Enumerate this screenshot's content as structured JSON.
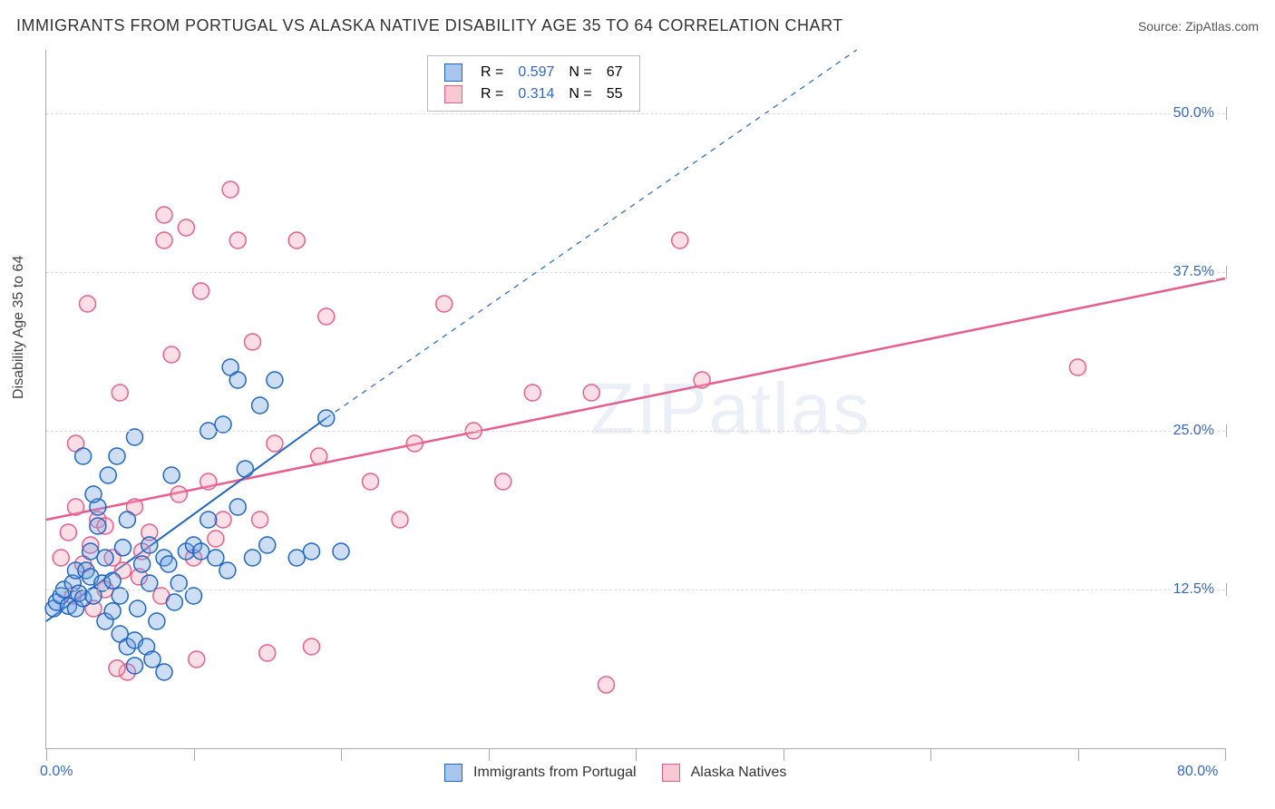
{
  "title": "IMMIGRANTS FROM PORTUGAL VS ALASKA NATIVE DISABILITY AGE 35 TO 64 CORRELATION CHART",
  "source_label": "Source:",
  "source_value": "ZipAtlas.com",
  "y_axis_title": "Disability Age 35 to 64",
  "watermark": "ZIPatlas",
  "chart": {
    "type": "scatter",
    "xlim": [
      0,
      80
    ],
    "ylim": [
      0,
      55
    ],
    "x_label_min": "0.0%",
    "x_label_max": "80.0%",
    "y_grid_values": [
      12.5,
      25.0,
      37.5,
      50.0
    ],
    "y_grid_labels": [
      "12.5%",
      "25.0%",
      "37.5%",
      "50.0%"
    ],
    "x_tick_values": [
      0,
      10,
      20,
      30,
      40,
      50,
      60,
      70,
      80
    ],
    "background_color": "#ffffff",
    "grid_color": "#dddddd",
    "axis_color": "#aaaaaa",
    "label_color": "#3366cc",
    "label_fontsize": 16,
    "title_fontsize": 18,
    "title_color": "#333333",
    "marker_radius": 9,
    "marker_stroke_width": 1.5,
    "marker_fill_opacity": 0.35,
    "series": [
      {
        "name": "Immigrants from Portugal",
        "color_fill": "#6fa0e0",
        "color_stroke": "#1f66c4",
        "R": 0.597,
        "N": 67,
        "regression": {
          "solid": {
            "x1": 0,
            "y1": 10,
            "x2": 19,
            "y2": 26
          },
          "dashed": {
            "x1": 19,
            "y1": 26,
            "x2": 55,
            "y2": 55
          },
          "dash_pattern": "6 6",
          "line_width": 2
        },
        "points": [
          [
            0.5,
            11
          ],
          [
            0.7,
            11.5
          ],
          [
            1,
            12
          ],
          [
            1.2,
            12.5
          ],
          [
            1.5,
            11.2
          ],
          [
            1.8,
            13
          ],
          [
            2,
            11
          ],
          [
            2,
            14
          ],
          [
            2.2,
            12.2
          ],
          [
            2.5,
            11.8
          ],
          [
            2.5,
            23
          ],
          [
            2.7,
            14
          ],
          [
            3,
            13.5
          ],
          [
            3,
            15.5
          ],
          [
            3.2,
            12
          ],
          [
            3.5,
            17.5
          ],
          [
            3.5,
            19
          ],
          [
            3.8,
            13
          ],
          [
            4,
            10
          ],
          [
            4,
            15
          ],
          [
            4.2,
            21.5
          ],
          [
            4.5,
            10.8
          ],
          [
            4.5,
            13.2
          ],
          [
            5,
            9
          ],
          [
            5,
            12
          ],
          [
            5.2,
            15.8
          ],
          [
            5.5,
            8
          ],
          [
            5.5,
            18
          ],
          [
            6,
            8.5
          ],
          [
            6,
            24.5
          ],
          [
            6.2,
            11
          ],
          [
            6.5,
            14.5
          ],
          [
            6.8,
            8
          ],
          [
            7,
            16
          ],
          [
            7,
            13
          ],
          [
            7.5,
            10
          ],
          [
            8,
            15
          ],
          [
            8.3,
            14.5
          ],
          [
            8.5,
            21.5
          ],
          [
            8.7,
            11.5
          ],
          [
            9,
            13
          ],
          [
            9.5,
            15.5
          ],
          [
            10,
            16
          ],
          [
            10,
            12
          ],
          [
            10.5,
            15.5
          ],
          [
            11,
            18
          ],
          [
            11,
            25
          ],
          [
            11.5,
            15
          ],
          [
            12,
            25.5
          ],
          [
            12.3,
            14
          ],
          [
            12.5,
            30
          ],
          [
            13,
            19
          ],
          [
            13,
            29
          ],
          [
            13.5,
            22
          ],
          [
            14,
            15
          ],
          [
            14.5,
            27
          ],
          [
            15,
            16
          ],
          [
            15.5,
            29
          ],
          [
            17,
            15
          ],
          [
            18,
            15.5
          ],
          [
            19,
            26
          ],
          [
            20,
            15.5
          ],
          [
            6,
            6.5
          ],
          [
            7.2,
            7
          ],
          [
            8,
            6
          ],
          [
            4.8,
            23
          ],
          [
            3.2,
            20
          ]
        ]
      },
      {
        "name": "AlaNatives",
        "legend_label": "Alaska Natives",
        "color_fill": "#f5a3b8",
        "color_stroke": "#e95d8a",
        "R": 0.314,
        "N": 55,
        "regression": {
          "solid": {
            "x1": 0,
            "y1": 18,
            "x2": 80,
            "y2": 37
          },
          "line_width": 2.5
        },
        "points": [
          [
            1,
            15
          ],
          [
            1.5,
            17
          ],
          [
            1.8,
            12
          ],
          [
            2,
            24
          ],
          [
            2,
            19
          ],
          [
            2.5,
            14.5
          ],
          [
            2.8,
            35
          ],
          [
            3,
            16
          ],
          [
            3.2,
            11
          ],
          [
            3.5,
            18
          ],
          [
            4,
            12.5
          ],
          [
            4,
            17.5
          ],
          [
            4.5,
            15
          ],
          [
            5,
            28
          ],
          [
            5.2,
            14
          ],
          [
            5.5,
            6
          ],
          [
            6,
            19
          ],
          [
            6.5,
            15.5
          ],
          [
            7,
            17
          ],
          [
            8,
            40
          ],
          [
            8,
            42
          ],
          [
            8.5,
            31
          ],
          [
            9,
            20
          ],
          [
            9.5,
            41
          ],
          [
            10,
            15
          ],
          [
            10.2,
            7
          ],
          [
            10.5,
            36
          ],
          [
            11,
            21
          ],
          [
            12,
            18
          ],
          [
            12.5,
            44
          ],
          [
            13,
            40
          ],
          [
            14,
            32
          ],
          [
            14.5,
            18
          ],
          [
            15,
            7.5
          ],
          [
            15.5,
            24
          ],
          [
            17,
            40
          ],
          [
            18,
            8
          ],
          [
            18.5,
            23
          ],
          [
            19,
            34
          ],
          [
            22,
            21
          ],
          [
            24,
            18
          ],
          [
            25,
            24
          ],
          [
            27,
            35
          ],
          [
            29,
            25
          ],
          [
            31,
            21
          ],
          [
            33,
            28
          ],
          [
            37,
            28
          ],
          [
            38,
            5
          ],
          [
            43,
            40
          ],
          [
            44.5,
            29
          ],
          [
            4.8,
            6.3
          ],
          [
            11.5,
            16.5
          ],
          [
            70,
            30
          ],
          [
            6.3,
            13.5
          ],
          [
            7.8,
            12
          ]
        ]
      }
    ]
  },
  "legend_top": {
    "R_label": "R =",
    "N_label": "N =",
    "rows": [
      {
        "swatch_fill": "#a8c6ee",
        "swatch_stroke": "#1f66c4",
        "R": "0.597",
        "N": "67"
      },
      {
        "swatch_fill": "#f8c8d4",
        "swatch_stroke": "#e95d8a",
        "R": "0.314",
        "N": "55"
      }
    ]
  },
  "legend_bottom": {
    "items": [
      {
        "swatch_fill": "#a8c6ee",
        "swatch_stroke": "#1f66c4",
        "label": "Immigrants from Portugal"
      },
      {
        "swatch_fill": "#f8c8d4",
        "swatch_stroke": "#e95d8a",
        "label": "Alaska Natives"
      }
    ]
  }
}
